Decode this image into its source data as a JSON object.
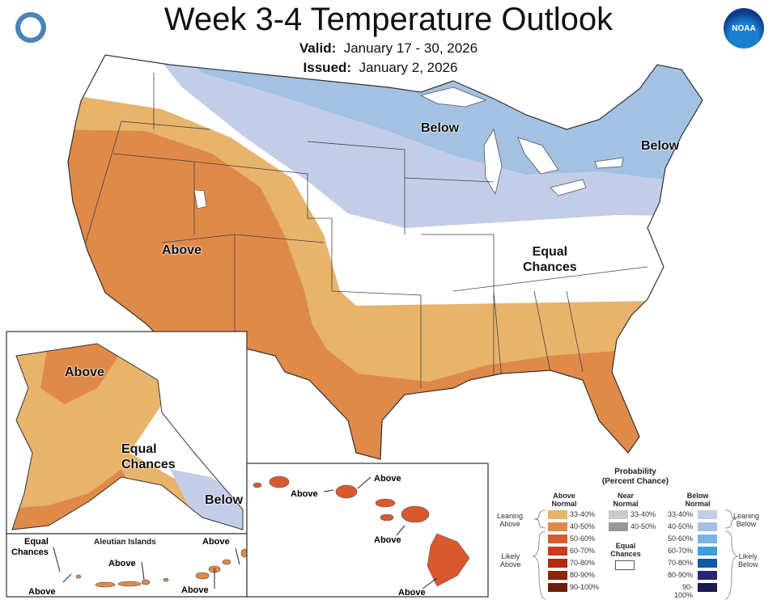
{
  "header": {
    "title": "Week 3-4 Temperature Outlook",
    "valid_label": "Valid:",
    "valid_value": "January 17 - 30, 2026",
    "issued_label": "Issued:",
    "issued_value": "January 2, 2026",
    "left_logo": "commerce-seal-icon",
    "right_logo": "noaa-logo-icon",
    "noaa_logo_text": "NOAA"
  },
  "map": {
    "labels": {
      "below_midwest": "Below",
      "below_northeast": "Below",
      "above_west": "Above",
      "equal_east_1": "Equal",
      "equal_east_2": "Chances"
    },
    "alaska": {
      "above": "Above",
      "equal_1": "Equal",
      "equal_2": "Chances",
      "below": "Below"
    },
    "aleutian": {
      "title": "Aleutian Islands",
      "equal_1": "Equal",
      "equal_2": "Chances",
      "above_1": "Above",
      "above_2": "Above",
      "above_3": "Above",
      "above_4": "Above"
    },
    "hawaii": {
      "above_1": "Above",
      "above_2": "Above",
      "above_3": "Above",
      "above_4": "Above"
    },
    "colors": {
      "above_33_40": "#e8b36b",
      "above_40_50": "#e08a4a",
      "above_50_60": "#d9592e",
      "below_33_40": "#c4cde8",
      "below_40_50": "#a3c1e2",
      "equal": "#ffffff"
    }
  },
  "legend": {
    "title_1": "Probability",
    "title_2": "(Percent Chance)",
    "above_header_1": "Above",
    "above_header_2": "Normal",
    "near_header_1": "Near",
    "near_header_2": "Normal",
    "below_header_1": "Below",
    "below_header_2": "Normal",
    "leaning_above_1": "Leaning",
    "leaning_above_2": "Above",
    "likely_above_1": "Likely",
    "likely_above_2": "Above",
    "leaning_below_1": "Leaning",
    "leaning_below_2": "Below",
    "likely_below_1": "Likely",
    "likely_below_2": "Below",
    "equal_1": "Equal",
    "equal_2": "Chances",
    "above": [
      {
        "range": "33-40%",
        "color": "#e8b36b"
      },
      {
        "range": "40-50%",
        "color": "#e08a4a"
      },
      {
        "range": "50-60%",
        "color": "#d9592e"
      },
      {
        "range": "60-70%",
        "color": "#cc3a1c"
      },
      {
        "range": "70-80%",
        "color": "#b32a0c"
      },
      {
        "range": "80-90%",
        "color": "#8f2408"
      },
      {
        "range": "90-100%",
        "color": "#6e1f08"
      }
    ],
    "near": [
      {
        "range": "33-40%",
        "color": "#cccccc"
      },
      {
        "range": "40-50%",
        "color": "#999999"
      }
    ],
    "below": [
      {
        "range": "33-40%",
        "color": "#c4cde8"
      },
      {
        "range": "40-50%",
        "color": "#a3c1e2"
      },
      {
        "range": "50-60%",
        "color": "#7ab4e2"
      },
      {
        "range": "60-70%",
        "color": "#3a9fdc"
      },
      {
        "range": "70-80%",
        "color": "#0b5ba8"
      },
      {
        "range": "80-90%",
        "color": "#2b2577"
      },
      {
        "range": "90-100%",
        "color": "#1c1a4f"
      }
    ]
  }
}
